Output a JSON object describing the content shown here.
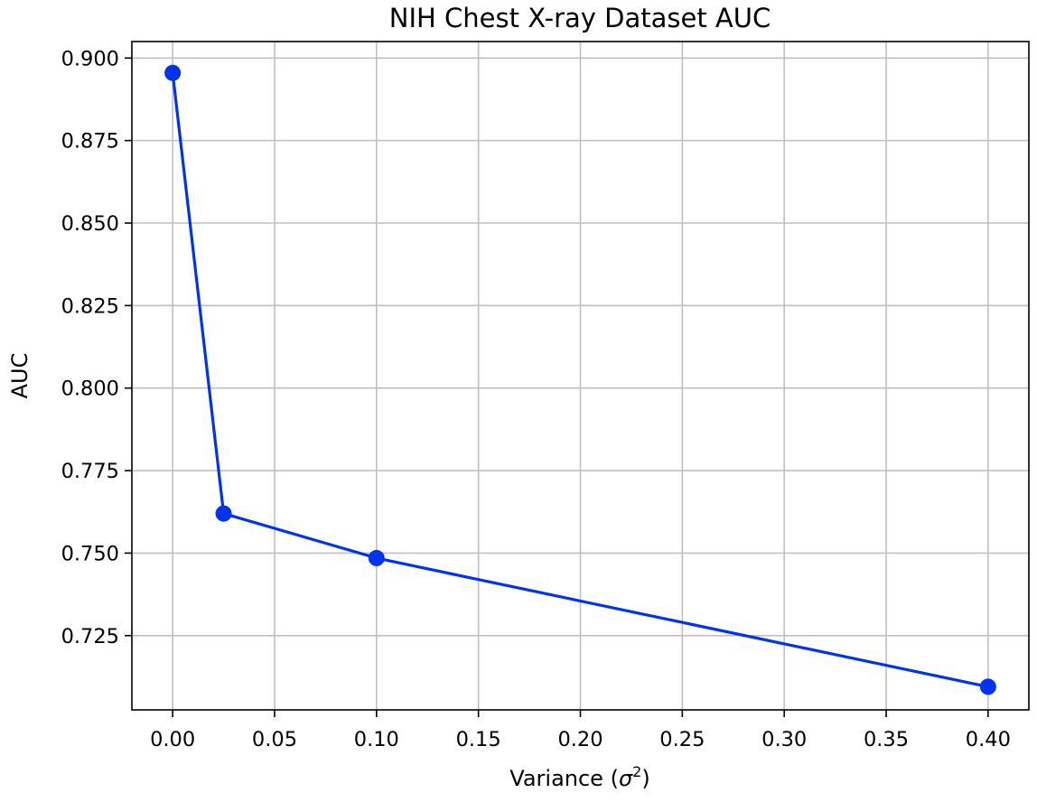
{
  "chart_data": {
    "type": "line",
    "title": "NIH Chest X-ray Dataset AUC",
    "xlabel": "Variance (σ²)",
    "ylabel": "AUC",
    "xlim": [
      -0.02,
      0.42
    ],
    "ylim": [
      0.7025,
      0.905
    ],
    "xticks": [
      0.0,
      0.05,
      0.1,
      0.15,
      0.2,
      0.25,
      0.3,
      0.35,
      0.4
    ],
    "xtick_labels": [
      "0.00",
      "0.05",
      "0.10",
      "0.15",
      "0.20",
      "0.25",
      "0.30",
      "0.35",
      "0.40"
    ],
    "yticks": [
      0.725,
      0.75,
      0.775,
      0.8,
      0.825,
      0.85,
      0.875,
      0.9
    ],
    "ytick_labels": [
      "0.725",
      "0.750",
      "0.775",
      "0.800",
      "0.825",
      "0.850",
      "0.875",
      "0.900"
    ],
    "grid": true,
    "series": [
      {
        "color": "#0033ee",
        "marker": "circle",
        "x": [
          0.0,
          0.025,
          0.1,
          0.4
        ],
        "y": [
          0.8955,
          0.762,
          0.7485,
          0.7095
        ]
      }
    ]
  }
}
